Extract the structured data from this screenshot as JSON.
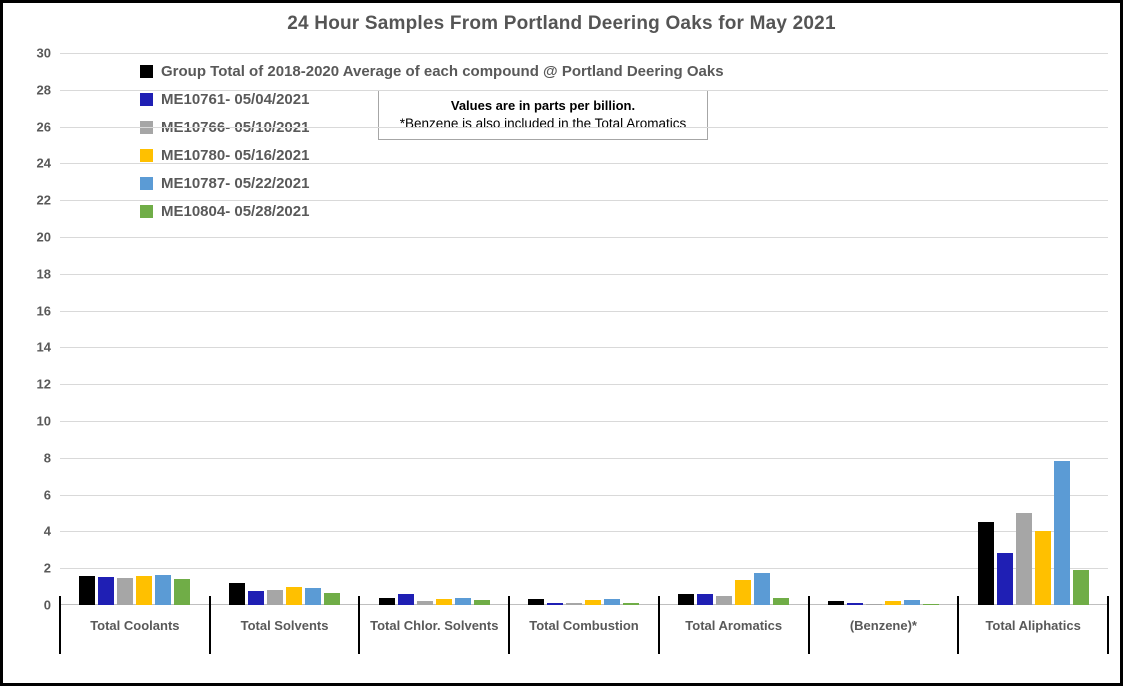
{
  "title": "24 Hour Samples From Portland Deering Oaks for May 2021",
  "annotation": {
    "line1": "Values are in parts per billion.",
    "line2": "*Benzene is also included in the Total Aromatics"
  },
  "colors": {
    "text_gray": "#595959",
    "gridline": "#d9d9d9",
    "frame_border": "#000000"
  },
  "chart_data": {
    "type": "bar",
    "title": "24 Hour Samples From Portland Deering Oaks for May 2021",
    "xlabel": "",
    "ylabel": "",
    "ylim": [
      0,
      30
    ],
    "ytick_step": 2,
    "grid": true,
    "legend_position": "top-left-inside",
    "categories": [
      "Total Coolants",
      "Total Solvents",
      "Total Chlor. Solvents",
      "Total Combustion",
      "Total Aromatics",
      "(Benzene)*",
      "Total Aliphatics"
    ],
    "series": [
      {
        "name": "Group Total of 2018-2020 Average of each compound @ Portland Deering Oaks",
        "color": "#000000",
        "values": [
          1.55,
          1.2,
          0.4,
          0.35,
          0.6,
          0.2,
          4.5
        ]
      },
      {
        "name": "ME10761- 05/04/2021",
        "color": "#1f1fb4",
        "values": [
          1.5,
          0.75,
          0.6,
          0.1,
          0.62,
          0.13,
          2.8
        ]
      },
      {
        "name": "ME10766- 05/10/2021",
        "color": "#a6a6a6",
        "values": [
          1.45,
          0.8,
          0.2,
          0.12,
          0.5,
          0.08,
          5.0
        ]
      },
      {
        "name": "ME10780- 05/16/2021",
        "color": "#ffc000",
        "values": [
          1.55,
          1.0,
          0.35,
          0.25,
          1.35,
          0.2,
          4.0
        ]
      },
      {
        "name": "ME10787- 05/22/2021",
        "color": "#5b9bd5",
        "values": [
          1.65,
          0.95,
          0.4,
          0.33,
          1.75,
          0.25,
          7.8
        ]
      },
      {
        "name": "ME10804- 05/28/2021",
        "color": "#70ad47",
        "values": [
          1.4,
          0.65,
          0.25,
          0.1,
          0.4,
          0.08,
          1.9
        ]
      }
    ]
  }
}
